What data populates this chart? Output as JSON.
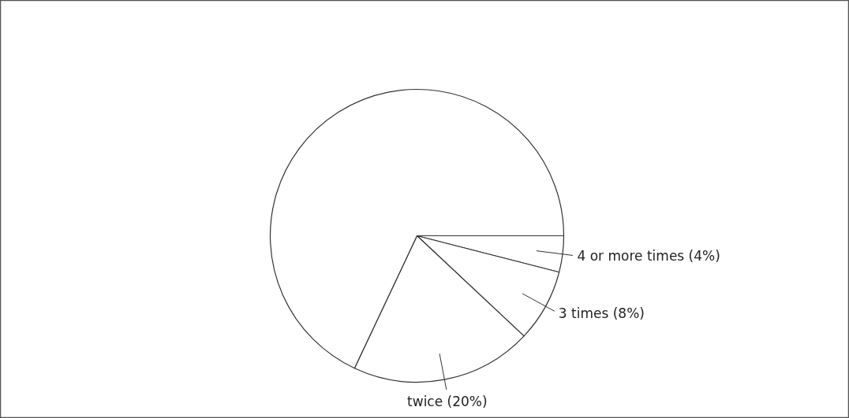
{
  "chart_data": {
    "type": "pie",
    "categories": [
      "4 or more times (4%)",
      "3 times (8%)",
      "twice (20%)",
      null
    ],
    "values": [
      4,
      8,
      20,
      68
    ],
    "colors": [
      "#ffffff",
      "#ffffff",
      "#ffffff",
      "#ffffff"
    ]
  }
}
